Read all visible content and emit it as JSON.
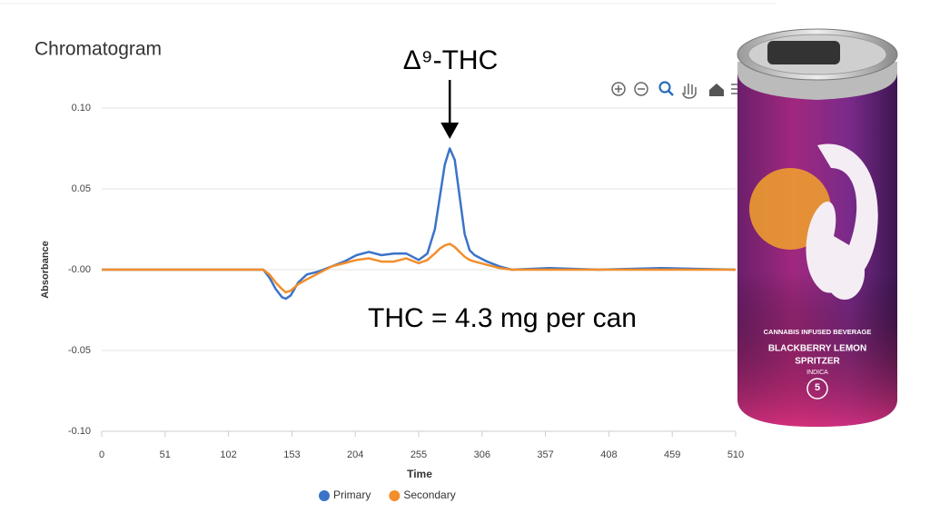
{
  "chart_data": {
    "type": "line",
    "title": "Chromatogram",
    "xlabel": "Time",
    "ylabel": "Absorbance",
    "x": [
      0,
      130,
      135,
      140,
      145,
      148,
      152,
      158,
      165,
      175,
      185,
      195,
      205,
      215,
      225,
      235,
      245,
      255,
      262,
      268,
      272,
      276,
      280,
      284,
      288,
      292,
      296,
      300,
      310,
      320,
      330,
      360,
      400,
      450,
      510
    ],
    "series": [
      {
        "name": "Primary",
        "color": "#3b73c8",
        "values": [
          0,
          0,
          -0.005,
          -0.012,
          -0.017,
          -0.018,
          -0.016,
          -0.008,
          -0.003,
          -0.001,
          0.002,
          0.005,
          0.009,
          0.011,
          0.009,
          0.01,
          0.01,
          0.006,
          0.01,
          0.025,
          0.045,
          0.065,
          0.075,
          0.068,
          0.045,
          0.022,
          0.012,
          0.009,
          0.005,
          0.002,
          0,
          0.001,
          0,
          0.001,
          0
        ]
      },
      {
        "name": "Secondary",
        "color": "#f28e2b",
        "values": [
          0,
          0,
          -0.003,
          -0.008,
          -0.012,
          -0.014,
          -0.013,
          -0.009,
          -0.006,
          -0.002,
          0.002,
          0.004,
          0.006,
          0.007,
          0.005,
          0.005,
          0.007,
          0.004,
          0.006,
          0.01,
          0.013,
          0.015,
          0.016,
          0.014,
          0.011,
          0.008,
          0.006,
          0.005,
          0.003,
          0.001,
          0,
          0,
          0,
          0,
          0
        ]
      }
    ],
    "xlim": [
      0,
      510
    ],
    "xticks": [
      0,
      51,
      102,
      153,
      204,
      255,
      306,
      357,
      408,
      459,
      510
    ],
    "ylim": [
      -0.1,
      0.1
    ],
    "yticks": [
      {
        "value": -0.1,
        "label": "-0.10"
      },
      {
        "value": -0.05,
        "label": "-0.05"
      },
      {
        "value": 0,
        "label": "-0.00"
      },
      {
        "value": 0.05,
        "label": "0.05"
      },
      {
        "value": 0.1,
        "label": "0.10"
      }
    ],
    "grid": true,
    "legend": "bottom",
    "annotations": [
      {
        "text": "Δ⁹-THC",
        "x": 280
      },
      {
        "text": "THC = 4.3 mg per can"
      }
    ]
  },
  "can": {
    "line1": "CANNABIS INFUSED BEVERAGE",
    "line2": "BLACKBERRY LEMON",
    "line3": "SPRITZER",
    "line4": "INDICA",
    "dose": "5"
  }
}
